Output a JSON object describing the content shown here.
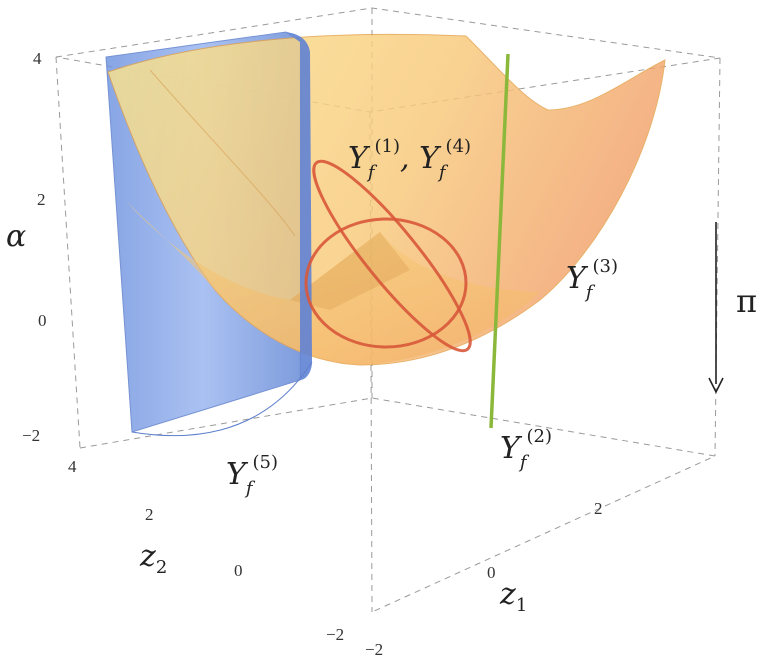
{
  "axes": {
    "alpha": {
      "label": "α",
      "ticks": [
        "4",
        "2",
        "0",
        "−2"
      ]
    },
    "z1": {
      "label": "z",
      "sub": "1",
      "ticks": [
        "−2",
        "0",
        "2"
      ]
    },
    "z2": {
      "label": "z",
      "sub": "2",
      "ticks": [
        "4",
        "2",
        "0",
        "−2"
      ]
    }
  },
  "labels": {
    "y14": {
      "a": "Y",
      "a_sub": "f",
      "a_sup": "(1)",
      "sep": ", ",
      "b": "Y",
      "b_sub": "f",
      "b_sup": "(4)"
    },
    "y3": {
      "base": "Y",
      "sub": "f",
      "sup": "(3)"
    },
    "y2": {
      "base": "Y",
      "sub": "f",
      "sup": "(2)"
    },
    "y5": {
      "base": "Y",
      "sub": "f",
      "sup": "(5)"
    },
    "pi": "π"
  },
  "colors": {
    "paraboloid": "#f6c46a",
    "paraboloid_edge": "#e59a45",
    "cylinder": "#7b9fe6",
    "line": "#8bb83a",
    "curve": "#d8583a"
  }
}
